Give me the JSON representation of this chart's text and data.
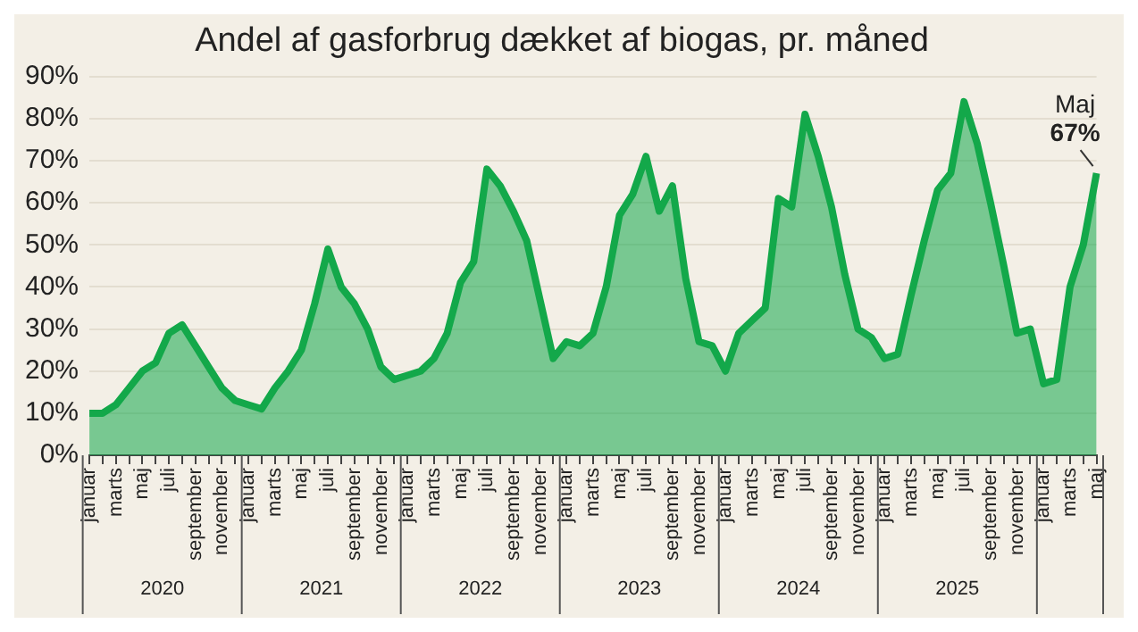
{
  "chart_data": {
    "type": "area",
    "title": "Andel af gasforbrug dækket af biogas, pr. måned",
    "categories": [
      "januar",
      null,
      "marts",
      null,
      "maj",
      null,
      "juli",
      null,
      "september",
      null,
      "november",
      null,
      "januar",
      null,
      "marts",
      null,
      "maj",
      null,
      "juli",
      null,
      "september",
      null,
      "november",
      null,
      "januar",
      null,
      "marts",
      null,
      "maj",
      null,
      "juli",
      null,
      "september",
      null,
      "november",
      null,
      "januar",
      null,
      "marts",
      null,
      "maj",
      null,
      "juli",
      null,
      "september",
      null,
      "november",
      null,
      "januar",
      null,
      "marts",
      null,
      "maj",
      null,
      "juli",
      null,
      "september",
      null,
      "november",
      null,
      "januar",
      null,
      "marts",
      null,
      "maj",
      null,
      "juli",
      null,
      "september",
      null,
      "november",
      null,
      "januar",
      null,
      "marts",
      null,
      "maj"
    ],
    "series": [
      {
        "color": "#13a84a",
        "values": [
          10,
          10,
          12,
          16,
          20,
          22,
          29,
          31,
          26,
          21,
          16,
          13,
          12,
          11,
          16,
          20,
          25,
          36,
          49,
          40,
          36,
          30,
          21,
          18,
          19,
          20,
          23,
          29,
          41,
          46,
          68,
          64,
          58,
          51,
          37,
          23,
          27,
          26,
          29,
          40,
          57,
          62,
          71,
          58,
          64,
          42,
          27,
          26,
          20,
          29,
          32,
          35,
          61,
          59,
          81,
          71,
          59,
          43,
          30,
          28,
          23,
          24,
          38,
          51,
          63,
          67,
          84,
          74,
          60,
          45,
          29,
          30,
          17,
          18,
          40,
          50,
          67
        ]
      }
    ],
    "ylim": [
      0,
      90
    ],
    "yticks": [
      {
        "value": 0,
        "label": "0%"
      },
      {
        "value": 10,
        "label": "10%"
      },
      {
        "value": 20,
        "label": "20%"
      },
      {
        "value": 30,
        "label": "30%"
      },
      {
        "value": 40,
        "label": "40%"
      },
      {
        "value": 50,
        "label": "50%"
      },
      {
        "value": 60,
        "label": "60%"
      },
      {
        "value": 70,
        "label": "70%"
      },
      {
        "value": 80,
        "label": "80%"
      },
      {
        "value": 90,
        "label": "90%"
      }
    ],
    "grid": "y",
    "legend": false,
    "marker": "none",
    "annotations": [
      "2020",
      "2021",
      "2022",
      "2023",
      "2024",
      "2025",
      "Maj 67%"
    ]
  }
}
